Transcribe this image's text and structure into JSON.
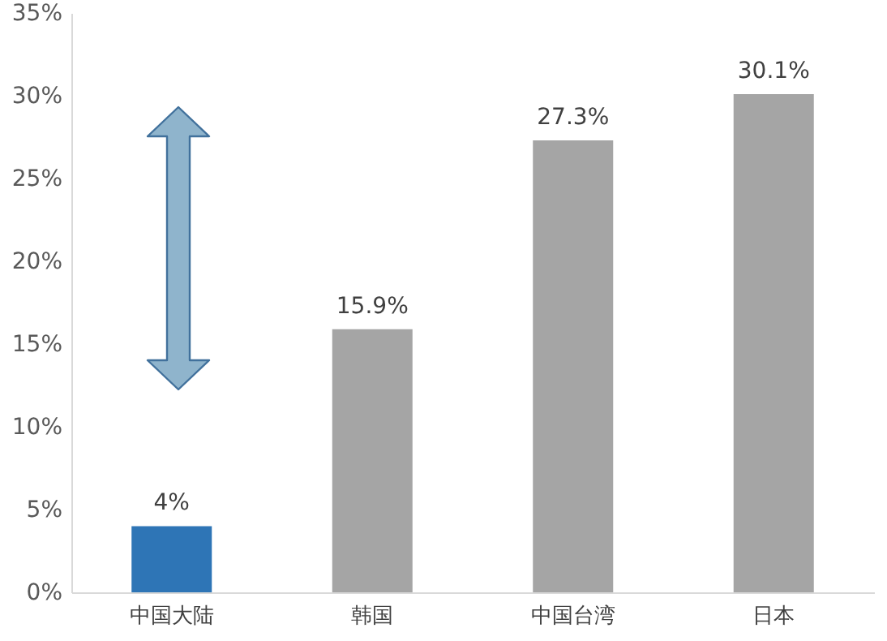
{
  "chart_data": {
    "type": "bar",
    "categories": [
      "中国大陆",
      "韩国",
      "中国台湾",
      "日本"
    ],
    "values": [
      4,
      15.9,
      27.3,
      30.1
    ],
    "colors": [
      "#2e75b6",
      "#a5a5a5",
      "#a5a5a5",
      "#a5a5a5"
    ],
    "value_labels": [
      "4%",
      "15.9%",
      "27.3%",
      "30.1%"
    ],
    "ylim": [
      0,
      35
    ],
    "yticks": [
      {
        "value": 0,
        "label": "0%"
      },
      {
        "value": 5,
        "label": "5%"
      },
      {
        "value": 10,
        "label": "10%"
      },
      {
        "value": 15,
        "label": "15%"
      },
      {
        "value": 20,
        "label": "20%"
      },
      {
        "value": 25,
        "label": "25%"
      },
      {
        "value": 30,
        "label": "30%"
      },
      {
        "value": 35,
        "label": "35%"
      }
    ],
    "grid": false
  }
}
